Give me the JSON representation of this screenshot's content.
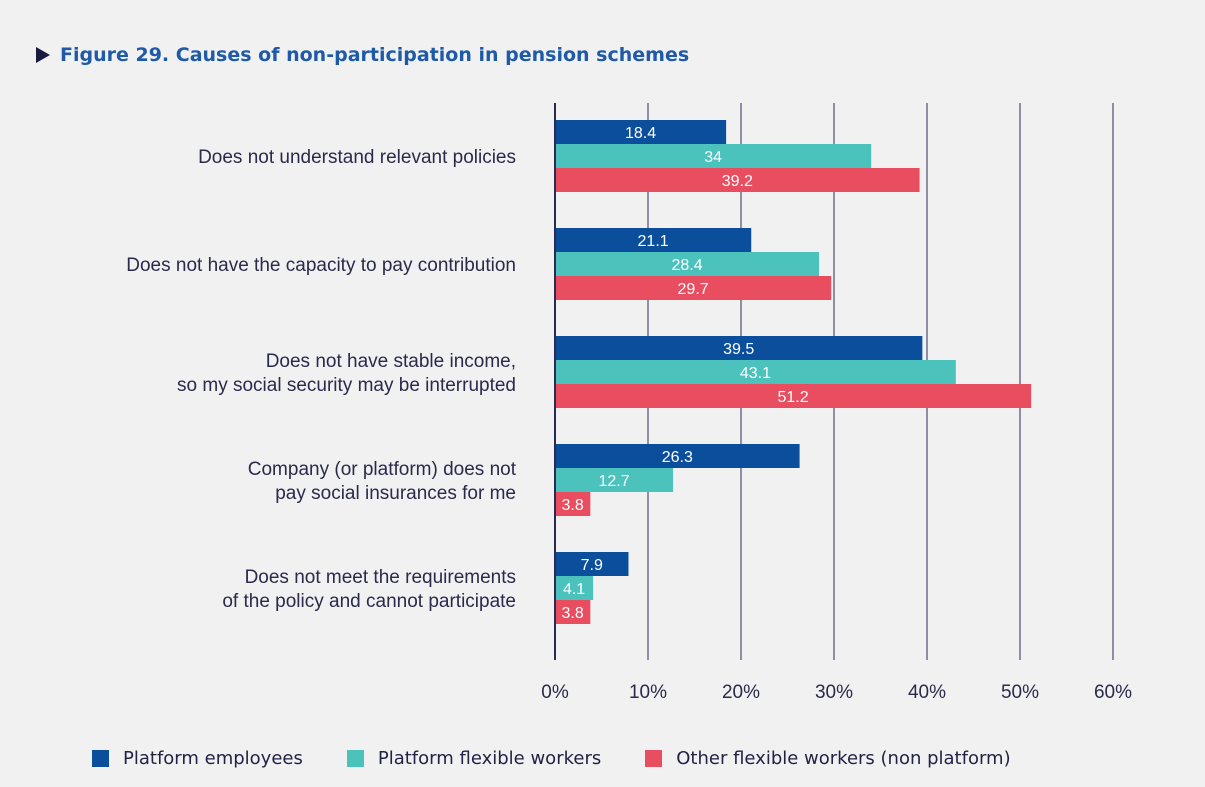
{
  "title": "Figure 29. Causes of non-participation in pension schemes",
  "colors": {
    "series": [
      "#0b4f9c",
      "#4cc2bd",
      "#e84d60"
    ],
    "grid": "#2a2a55",
    "label_text": "#2a2a4a",
    "bar_text": "#ffffff"
  },
  "chart_data": {
    "type": "bar",
    "orientation": "horizontal",
    "title": "Figure 29. Causes of non-participation in pension schemes",
    "categories": [
      [
        "Does not understand relevant policies"
      ],
      [
        "Does not have the capacity to pay contribution"
      ],
      [
        "Does not have stable income,",
        "so my social security may be interrupted"
      ],
      [
        "Company (or platform) does not",
        "pay social insurances for me"
      ],
      [
        "Does not meet the requirements",
        "of the policy and cannot participate"
      ]
    ],
    "series": [
      {
        "name": "Platform employees",
        "values": [
          18.4,
          21.1,
          39.5,
          26.3,
          7.9
        ],
        "labels": [
          "18.4",
          "21.1",
          "39.5",
          "26.3",
          "7.9"
        ]
      },
      {
        "name": "Platform flexible workers",
        "values": [
          34,
          28.4,
          43.1,
          12.7,
          4.1
        ],
        "labels": [
          "34",
          "28.4",
          "43.1",
          "12.7",
          "4.1"
        ]
      },
      {
        "name": "Other flexible workers (non platform)",
        "values": [
          39.2,
          29.7,
          51.2,
          3.8,
          3.8
        ],
        "labels": [
          "39.2",
          "29.7",
          "51.2",
          "3.8",
          "3.8"
        ]
      }
    ],
    "xticks": [
      0,
      10,
      20,
      30,
      40,
      50,
      60
    ],
    "xtick_labels": [
      "0%",
      "10%",
      "20%",
      "30%",
      "40%",
      "50%",
      "60%"
    ],
    "xlim": [
      0,
      60
    ],
    "grid": true,
    "legend_position": "bottom"
  }
}
